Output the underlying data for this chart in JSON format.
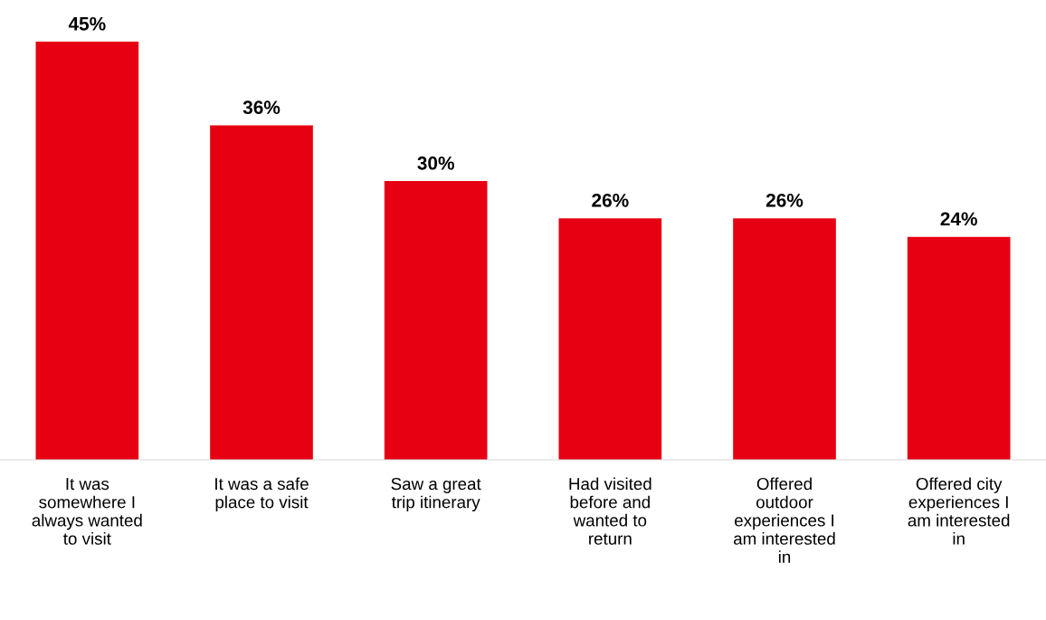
{
  "chart_data": {
    "type": "bar",
    "categories": [
      "It was\nsomewhere I\nalways wanted\nto visit",
      "It was a safe\nplace to visit",
      "Saw a great\ntrip itinerary",
      "Had visited\nbefore and\nwanted to\nreturn",
      "Offered\noutdoor\nexperiences I\nam interested\nin",
      "Offered city\nexperiences I\nam interested\nin"
    ],
    "values": [
      45,
      36,
      30,
      26,
      26,
      24
    ],
    "value_labels": [
      "45%",
      "36%",
      "30%",
      "26%",
      "26%",
      "24%"
    ],
    "color": "#e60012",
    "grid": false,
    "legend": false
  }
}
